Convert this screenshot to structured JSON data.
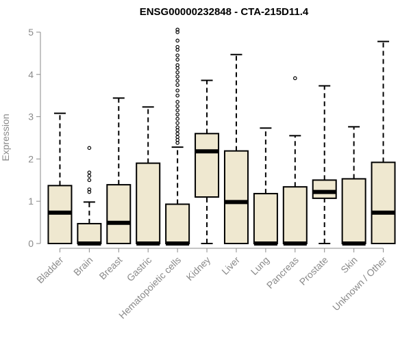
{
  "chart_data": {
    "type": "boxplot",
    "title": "ENSG00000232848 - CTA-215D11.4",
    "xlabel": "",
    "ylabel": "Expression",
    "ylim": [
      0,
      5
    ],
    "yticks": [
      0,
      1,
      2,
      3,
      4,
      5
    ],
    "box_color": "#efe8d0",
    "categories": [
      "Bladder",
      "Brain",
      "Breast",
      "Gastric",
      "Hematopoietic cells",
      "Kidney",
      "Liver",
      "Lung",
      "Pancreas",
      "Prostate",
      "Skin",
      "Unknown / Other"
    ],
    "boxes": [
      {
        "name": "Bladder",
        "min": 0,
        "q1": 0,
        "median": 0.73,
        "q3": 1.37,
        "max": 3.08,
        "outliers": []
      },
      {
        "name": "Brain",
        "min": 0,
        "q1": 0,
        "median": 0,
        "q3": 0.47,
        "max": 0.98,
        "outliers": [
          1.22,
          1.28,
          1.5,
          1.6,
          1.68,
          2.26
        ]
      },
      {
        "name": "Breast",
        "min": 0,
        "q1": 0,
        "median": 0.49,
        "q3": 1.39,
        "max": 3.44,
        "outliers": []
      },
      {
        "name": "Gastric",
        "min": 0,
        "q1": 0,
        "median": 0,
        "q3": 1.9,
        "max": 3.23,
        "outliers": []
      },
      {
        "name": "Hematopoietic cells",
        "min": 0,
        "q1": 0,
        "median": 0,
        "q3": 0.93,
        "max": 2.28,
        "outliers": [
          2.38,
          2.45,
          2.52,
          2.6,
          2.68,
          2.75,
          2.85,
          2.95,
          3.05,
          3.15,
          3.25,
          3.35,
          3.5,
          3.62,
          3.75,
          3.85,
          3.95,
          4.05,
          4.15,
          4.22,
          4.35,
          4.45,
          4.58,
          4.65,
          4.8,
          5.0,
          5.06
        ]
      },
      {
        "name": "Kidney",
        "min": 0,
        "q1": 1.1,
        "median": 2.18,
        "q3": 2.6,
        "max": 3.86,
        "outliers": []
      },
      {
        "name": "Liver",
        "min": 0,
        "q1": 0,
        "median": 0.98,
        "q3": 2.19,
        "max": 4.47,
        "outliers": []
      },
      {
        "name": "Lung",
        "min": 0,
        "q1": 0,
        "median": 0,
        "q3": 1.18,
        "max": 2.73,
        "outliers": []
      },
      {
        "name": "Pancreas",
        "min": 0,
        "q1": 0,
        "median": 0,
        "q3": 1.34,
        "max": 2.55,
        "outliers": [
          3.91
        ]
      },
      {
        "name": "Prostate",
        "min": 0,
        "q1": 1.07,
        "median": 1.22,
        "q3": 1.5,
        "max": 3.73,
        "outliers": []
      },
      {
        "name": "Skin",
        "min": 0,
        "q1": 0,
        "median": 0,
        "q3": 1.53,
        "max": 2.76,
        "outliers": []
      },
      {
        "name": "Unknown / Other",
        "min": 0,
        "q1": 0,
        "median": 0.73,
        "q3": 1.92,
        "max": 4.78,
        "outliers": []
      }
    ]
  }
}
